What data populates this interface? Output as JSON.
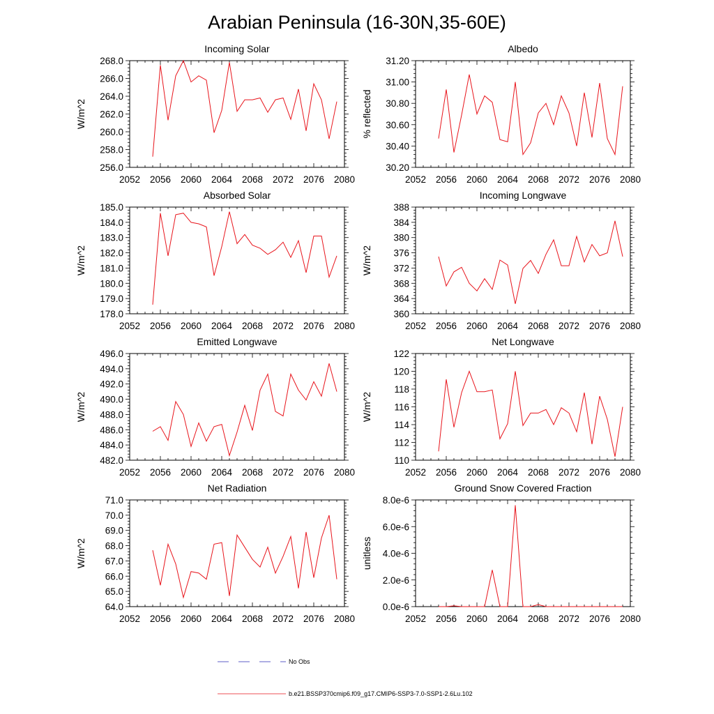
{
  "figure": {
    "title": "Arabian Peninsula (16-30N,35-60E)",
    "legend": [
      {
        "label": "No Obs",
        "color": "#2a2ab5",
        "style": "dashed"
      },
      {
        "label": "b.e21.BSSP370cmip6.f09_g17.CMIP6-SSP3-7.0-SSP1-2.6Lu.102",
        "color": "#e8141b",
        "style": "solid"
      }
    ]
  },
  "chart_data": [
    {
      "type": "line",
      "title": "Incoming Solar",
      "ylabel": "W/m^2",
      "xlim": [
        2052,
        2080
      ],
      "ylim": [
        256,
        268
      ],
      "x_ticks": [
        2052,
        2056,
        2060,
        2064,
        2068,
        2072,
        2076,
        2080
      ],
      "y_ticks": [
        "256.0",
        "258.0",
        "260.0",
        "262.0",
        "264.0",
        "266.0",
        "268.0"
      ],
      "series": [
        {
          "color": "#e8141b",
          "x": [
            2055,
            2056,
            2057,
            2058,
            2059,
            2060,
            2061,
            2062,
            2063,
            2064,
            2065,
            2066,
            2067,
            2068,
            2069,
            2070,
            2071,
            2072,
            2073,
            2074,
            2075,
            2076,
            2077,
            2078,
            2079
          ],
          "values": [
            257.2,
            267.5,
            261.3,
            266.3,
            268.0,
            265.6,
            266.3,
            265.8,
            259.9,
            262.4,
            267.8,
            262.3,
            263.6,
            263.6,
            263.8,
            262.2,
            263.6,
            263.8,
            261.4,
            264.8,
            260.1,
            265.4,
            263.6,
            259.2,
            263.4
          ]
        }
      ]
    },
    {
      "type": "line",
      "title": "Albedo",
      "ylabel": "% reflected",
      "xlim": [
        2052,
        2080
      ],
      "ylim": [
        30.2,
        31.2
      ],
      "x_ticks": [
        2052,
        2056,
        2060,
        2064,
        2068,
        2072,
        2076,
        2080
      ],
      "y_ticks": [
        "30.20",
        "30.40",
        "30.60",
        "30.80",
        "31.00",
        "31.20"
      ],
      "series": [
        {
          "color": "#e8141b",
          "x": [
            2055,
            2056,
            2057,
            2058,
            2059,
            2060,
            2061,
            2062,
            2063,
            2064,
            2065,
            2066,
            2067,
            2068,
            2069,
            2070,
            2071,
            2072,
            2073,
            2074,
            2075,
            2076,
            2077,
            2078,
            2079
          ],
          "values": [
            30.47,
            30.93,
            30.34,
            30.69,
            31.07,
            30.7,
            30.87,
            30.81,
            30.46,
            30.44,
            31.0,
            30.32,
            30.43,
            30.71,
            30.8,
            30.6,
            30.87,
            30.71,
            30.4,
            30.9,
            30.48,
            30.99,
            30.47,
            30.32,
            30.96
          ]
        }
      ]
    },
    {
      "type": "line",
      "title": "Absorbed Solar",
      "ylabel": "W/m^2",
      "xlim": [
        2052,
        2080
      ],
      "ylim": [
        178,
        185
      ],
      "x_ticks": [
        2052,
        2056,
        2060,
        2064,
        2068,
        2072,
        2076,
        2080
      ],
      "y_ticks": [
        "178.0",
        "179.0",
        "180.0",
        "181.0",
        "182.0",
        "183.0",
        "184.0",
        "185.0"
      ],
      "series": [
        {
          "color": "#e8141b",
          "x": [
            2055,
            2056,
            2057,
            2058,
            2059,
            2060,
            2061,
            2062,
            2063,
            2064,
            2065,
            2066,
            2067,
            2068,
            2069,
            2070,
            2071,
            2072,
            2073,
            2074,
            2075,
            2076,
            2077,
            2078,
            2079
          ],
          "values": [
            178.6,
            184.6,
            181.8,
            184.5,
            184.6,
            184.0,
            183.9,
            183.7,
            180.5,
            182.4,
            184.7,
            182.6,
            183.2,
            182.5,
            182.3,
            181.9,
            182.2,
            182.7,
            181.7,
            182.8,
            180.7,
            183.1,
            183.1,
            180.4,
            181.8
          ]
        }
      ]
    },
    {
      "type": "line",
      "title": "Incoming Longwave",
      "ylabel": "W/m^2",
      "xlim": [
        2052,
        2080
      ],
      "ylim": [
        360,
        388
      ],
      "x_ticks": [
        2052,
        2056,
        2060,
        2064,
        2068,
        2072,
        2076,
        2080
      ],
      "y_ticks": [
        "360",
        "364",
        "368",
        "372",
        "376",
        "380",
        "384",
        "388"
      ],
      "series": [
        {
          "color": "#e8141b",
          "x": [
            2055,
            2056,
            2057,
            2058,
            2059,
            2060,
            2061,
            2062,
            2063,
            2064,
            2065,
            2066,
            2067,
            2068,
            2069,
            2070,
            2071,
            2072,
            2073,
            2074,
            2075,
            2076,
            2077,
            2078,
            2079
          ],
          "values": [
            375.0,
            367.3,
            371.0,
            372.2,
            368.0,
            366.0,
            369.2,
            366.4,
            374.1,
            372.8,
            362.6,
            371.9,
            374.0,
            370.6,
            375.6,
            379.4,
            372.6,
            372.6,
            380.3,
            373.6,
            378.2,
            375.2,
            376.0,
            384.4,
            375.0
          ]
        }
      ]
    },
    {
      "type": "line",
      "title": "Emitted Longwave",
      "ylabel": "W/m^2",
      "xlim": [
        2052,
        2080
      ],
      "ylim": [
        482,
        496
      ],
      "x_ticks": [
        2052,
        2056,
        2060,
        2064,
        2068,
        2072,
        2076,
        2080
      ],
      "y_ticks": [
        "482.0",
        "484.0",
        "486.0",
        "488.0",
        "490.0",
        "492.0",
        "494.0",
        "496.0"
      ],
      "series": [
        {
          "color": "#e8141b",
          "x": [
            2055,
            2056,
            2057,
            2058,
            2059,
            2060,
            2061,
            2062,
            2063,
            2064,
            2065,
            2066,
            2067,
            2068,
            2069,
            2070,
            2071,
            2072,
            2073,
            2074,
            2075,
            2076,
            2077,
            2078,
            2079
          ],
          "values": [
            485.8,
            486.4,
            484.6,
            489.7,
            488.0,
            483.8,
            486.9,
            484.5,
            486.4,
            486.7,
            482.6,
            485.7,
            489.2,
            485.9,
            491.2,
            493.3,
            488.4,
            487.8,
            493.3,
            491.2,
            489.9,
            492.3,
            490.4,
            494.7,
            491.0
          ]
        }
      ]
    },
    {
      "type": "line",
      "title": "Net Longwave",
      "ylabel": "W/m^2",
      "xlim": [
        2052,
        2080
      ],
      "ylim": [
        110,
        122
      ],
      "x_ticks": [
        2052,
        2056,
        2060,
        2064,
        2068,
        2072,
        2076,
        2080
      ],
      "y_ticks": [
        "110",
        "112",
        "114",
        "116",
        "118",
        "120",
        "122"
      ],
      "series": [
        {
          "color": "#e8141b",
          "x": [
            2055,
            2056,
            2057,
            2058,
            2059,
            2060,
            2061,
            2062,
            2063,
            2064,
            2065,
            2066,
            2067,
            2068,
            2069,
            2070,
            2071,
            2072,
            2073,
            2074,
            2075,
            2076,
            2077,
            2078,
            2079
          ],
          "values": [
            111.0,
            119.1,
            113.7,
            117.6,
            120.0,
            117.7,
            117.7,
            117.9,
            112.4,
            114.1,
            120.0,
            113.9,
            115.3,
            115.3,
            115.7,
            114.0,
            115.9,
            115.3,
            113.2,
            117.6,
            111.8,
            117.2,
            114.6,
            110.4,
            116.0
          ]
        }
      ]
    },
    {
      "type": "line",
      "title": "Net Radiation",
      "ylabel": "W/m^2",
      "xlim": [
        2052,
        2080
      ],
      "ylim": [
        64,
        71
      ],
      "x_ticks": [
        2052,
        2056,
        2060,
        2064,
        2068,
        2072,
        2076,
        2080
      ],
      "y_ticks": [
        "64.0",
        "65.0",
        "66.0",
        "67.0",
        "68.0",
        "69.0",
        "70.0",
        "71.0"
      ],
      "series": [
        {
          "color": "#e8141b",
          "x": [
            2055,
            2056,
            2057,
            2058,
            2059,
            2060,
            2061,
            2062,
            2063,
            2064,
            2065,
            2066,
            2067,
            2068,
            2069,
            2070,
            2071,
            2072,
            2073,
            2074,
            2075,
            2076,
            2077,
            2078,
            2079
          ],
          "values": [
            67.7,
            65.4,
            68.1,
            66.8,
            64.6,
            66.3,
            66.2,
            65.8,
            68.1,
            68.2,
            64.7,
            68.7,
            67.9,
            67.1,
            66.6,
            67.9,
            66.2,
            67.3,
            68.6,
            65.2,
            68.9,
            65.9,
            68.5,
            70.0,
            65.8
          ]
        }
      ]
    },
    {
      "type": "line",
      "title": "Ground Snow Covered Fraction",
      "ylabel": "unitless",
      "xlim": [
        2052,
        2080
      ],
      "ylim": [
        0,
        8e-06
      ],
      "x_ticks": [
        2052,
        2056,
        2060,
        2064,
        2068,
        2072,
        2076,
        2080
      ],
      "y_ticks": [
        "0.0e-6",
        "2.0e-6",
        "4.0e-6",
        "6.0e-6",
        "8.0e-6"
      ],
      "series": [
        {
          "color": "#e8141b",
          "x": [
            2055,
            2056,
            2057,
            2058,
            2059,
            2060,
            2061,
            2062,
            2063,
            2064,
            2065,
            2066,
            2067,
            2068,
            2069,
            2070,
            2071,
            2072,
            2073,
            2074,
            2075,
            2076,
            2077,
            2078,
            2079
          ],
          "values": [
            0.0,
            0.0,
            6e-08,
            0.0,
            0.0,
            0.0,
            0.0,
            2.75e-06,
            0.0,
            0.0,
            7.6e-06,
            0.0,
            0.0,
            1.5e-07,
            0.0,
            0.0,
            0.0,
            0.0,
            0.0,
            0.0,
            0.0,
            0.0,
            0.0,
            0.0,
            0.0
          ]
        }
      ]
    }
  ]
}
